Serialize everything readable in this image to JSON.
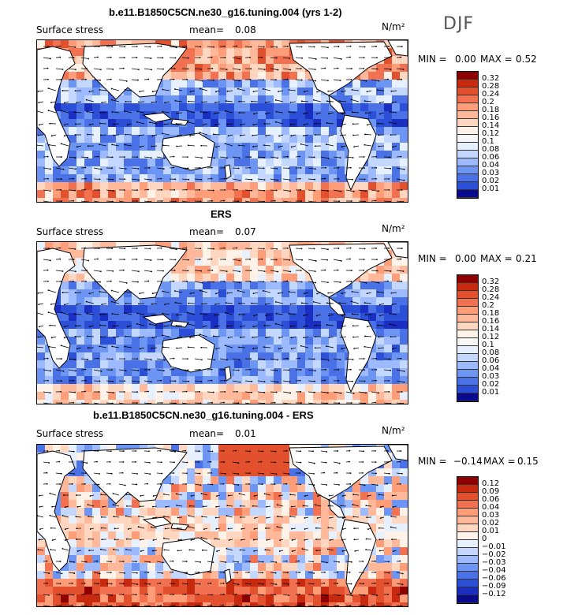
{
  "season": "DJF",
  "units": "N/m²",
  "variable": "Surface stress",
  "mean_label": "mean=",
  "min_label": "MIN =",
  "max_label": "MAX =",
  "colors": {
    "pos": [
      "#fff2e8",
      "#ffd6bf",
      "#ffb899",
      "#ff9d78",
      "#f27150",
      "#e3502d",
      "#c82a0f",
      "#8c0000"
    ],
    "neg": [
      "#e6f0ff",
      "#c4d8ff",
      "#9dbaff",
      "#6d96f4",
      "#4a72e6",
      "#2b4fd6",
      "#1a2ec2",
      "#0a0a8c"
    ]
  },
  "chart_data": [
    {
      "type": "heatmap",
      "title": "b.e11.B1850C5CN.ne30_g16.tuning.004 (yrs 1-2)",
      "mean": "0.08",
      "min": "0.00",
      "max": "0.52",
      "colorbar": [
        "0.32",
        "0.28",
        "0.24",
        "0.2",
        "0.18",
        "0.16",
        "0.14",
        "0.12",
        "0.1",
        "0.08",
        "0.06",
        "0.04",
        "0.03",
        "0.02",
        "0.01"
      ]
    },
    {
      "type": "heatmap",
      "title": "ERS",
      "mean": "0.07",
      "min": "0.00",
      "max": "0.21",
      "colorbar": [
        "0.32",
        "0.28",
        "0.24",
        "0.2",
        "0.18",
        "0.16",
        "0.14",
        "0.12",
        "0.1",
        "0.08",
        "0.06",
        "0.04",
        "0.03",
        "0.02",
        "0.01"
      ]
    },
    {
      "type": "heatmap",
      "title": "b.e11.B1850C5CN.ne30_g16.tuning.004 - ERS",
      "mean": "0.01",
      "min": "−0.14",
      "max": "0.15",
      "colorbar": [
        "0.12",
        "0.09",
        "0.06",
        "0.04",
        "0.03",
        "0.02",
        "0.01",
        "0",
        "−0.01",
        "−0.02",
        "−0.03",
        "−0.04",
        "−0.06",
        "−0.09",
        "−0.12"
      ]
    }
  ]
}
